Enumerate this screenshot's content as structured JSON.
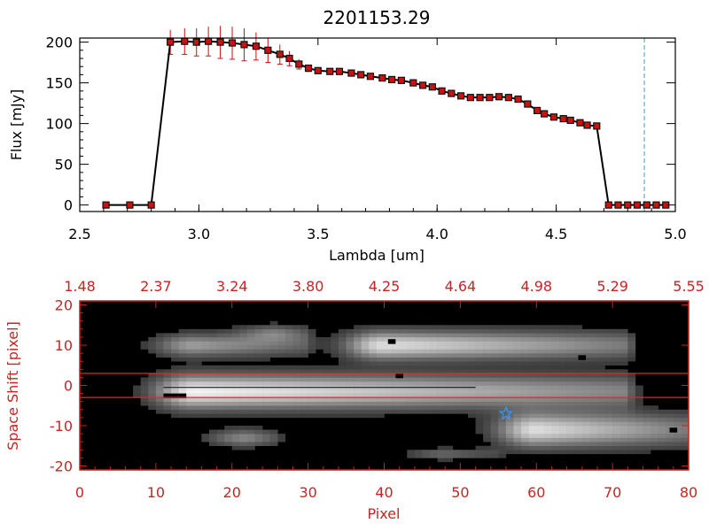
{
  "colors": {
    "spectrum_line": "#000000",
    "marker_fill": "#cc1111",
    "marker_edge": "#111111",
    "error_bar": "#cc1111",
    "cutoff_line": "#2aa7b8",
    "image_axis": "#cc2222",
    "extraction_line": "#ee2222",
    "star_marker": "#3399ff",
    "background": "#ffffff"
  },
  "chart_data": [
    {
      "type": "line",
      "title": "2201153.29",
      "xlabel": "Lambda [um]",
      "ylabel": "Flux [mJy]",
      "xlim": [
        2.5,
        5.0
      ],
      "ylim": [
        -8,
        205
      ],
      "xticks": [
        "2.5",
        "3.0",
        "3.5",
        "4.0",
        "4.5",
        "5.0"
      ],
      "xtick_values": [
        2.5,
        3.0,
        3.5,
        4.0,
        4.5,
        5.0
      ],
      "yticks": [
        "0",
        "50",
        "100",
        "150",
        "200"
      ],
      "ytick_values": [
        0,
        50,
        100,
        150,
        200
      ],
      "grid": false,
      "cutoff_x": 4.87,
      "series": [
        {
          "x": [
            2.61,
            2.71,
            2.8,
            2.88,
            2.94,
            2.99,
            3.04,
            3.09,
            3.14,
            3.19,
            3.24,
            3.29,
            3.34,
            3.38,
            3.42,
            3.46,
            3.5,
            3.55,
            3.59,
            3.64,
            3.68,
            3.72,
            3.77,
            3.81,
            3.85,
            3.9,
            3.94,
            3.98,
            4.02,
            4.06,
            4.1,
            4.14,
            4.18,
            4.22,
            4.26,
            4.3,
            4.34,
            4.38,
            4.42,
            4.45,
            4.49,
            4.53,
            4.56,
            4.6,
            4.63,
            4.67,
            4.72,
            4.76,
            4.8,
            4.84,
            4.88,
            4.92,
            4.96
          ],
          "y": [
            0,
            0,
            0,
            200,
            201,
            200,
            201,
            200,
            199,
            197,
            195,
            190,
            185,
            180,
            173,
            168,
            165,
            164,
            164,
            162,
            160,
            158,
            156,
            154,
            153,
            150,
            147,
            145,
            140,
            137,
            134,
            132,
            132,
            132,
            133,
            132,
            130,
            124,
            116,
            112,
            108,
            106,
            104,
            101,
            98,
            97,
            0,
            0,
            0,
            0,
            0,
            0,
            0
          ],
          "yerr": [
            0,
            0,
            0,
            15,
            16,
            17,
            18,
            20,
            20,
            20,
            17,
            15,
            12,
            9,
            6,
            4,
            3,
            2,
            2,
            2,
            2,
            2,
            2,
            2,
            2,
            2,
            2,
            2,
            2,
            2,
            2,
            2,
            2,
            2,
            2,
            2,
            2,
            2,
            2,
            2,
            2,
            2,
            2,
            2,
            2,
            2,
            0,
            0,
            0,
            0,
            0,
            0,
            0
          ]
        }
      ]
    },
    {
      "type": "heatmap",
      "xlabel": "Pixel",
      "ylabel": "Space Shift [pixel]",
      "xlim": [
        0,
        80
      ],
      "ylim": [
        -21,
        21
      ],
      "xticks": [
        "0",
        "10",
        "20",
        "30",
        "40",
        "50",
        "60",
        "70",
        "80"
      ],
      "xtick_values": [
        0,
        10,
        20,
        30,
        40,
        50,
        60,
        70,
        80
      ],
      "yticks": [
        "-20",
        "-10",
        "0",
        "10",
        "20"
      ],
      "ytick_values": [
        -20,
        -10,
        0,
        10,
        20
      ],
      "top_ticks": [
        "1.48",
        "2.37",
        "3.24",
        "3.80",
        "4.25",
        "4.64",
        "4.98",
        "5.29",
        "5.55"
      ],
      "extraction_window": [
        -3,
        3
      ],
      "star": [
        56,
        -7
      ],
      "sources": [
        {
          "x0": 3,
          "x1": 72,
          "yc": -1.5,
          "width": 6,
          "peak_x": 15,
          "peak": 0.95
        },
        {
          "x0": 35,
          "x1": 72,
          "yc": 10,
          "width": 5,
          "peak_x": 40,
          "peak": 0.85
        },
        {
          "x0": 8,
          "x1": 30,
          "yc": 10,
          "width": 4,
          "peak_x": 15,
          "peak": 0.55
        },
        {
          "x0": 55,
          "x1": 80,
          "yc": -11,
          "width": 6,
          "peak_x": 60,
          "peak": 0.85
        },
        {
          "x0": 18,
          "x1": 26,
          "yc": -13,
          "width": 3,
          "peak_x": 22,
          "peak": 0.45
        },
        {
          "x0": 22,
          "x1": 30,
          "yc": 13,
          "width": 3,
          "peak_x": 26,
          "peak": 0.35
        },
        {
          "x0": 40,
          "x1": 55,
          "yc": -17,
          "width": 2,
          "peak_x": 48,
          "peak": 0.3
        }
      ],
      "bad_pixels": [
        [
          41,
          11
        ],
        [
          42,
          2.5
        ],
        [
          66,
          7
        ],
        [
          78,
          -11
        ],
        [
          11.5,
          -2.5
        ],
        [
          12.5,
          -2.5
        ],
        [
          13.5,
          -2.5
        ]
      ]
    }
  ]
}
